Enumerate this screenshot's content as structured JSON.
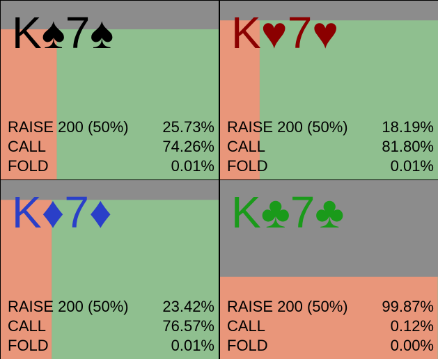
{
  "hands": [
    {
      "title": "K♠7♠",
      "color": "#000000",
      "weight": 0.84,
      "actions": [
        {
          "name": "RAISE 200 (50%)",
          "value": 25.73,
          "label": "25.73%"
        },
        {
          "name": "CALL",
          "value": 74.26,
          "label": "74.26%"
        },
        {
          "name": "FOLD",
          "value": 0.01,
          "label": "0.01%"
        }
      ]
    },
    {
      "title": "K♥7♥",
      "color": "#8b0000",
      "weight": 0.89,
      "actions": [
        {
          "name": "RAISE 200 (50%)",
          "value": 18.19,
          "label": "18.19%"
        },
        {
          "name": "CALL",
          "value": 81.8,
          "label": "81.80%"
        },
        {
          "name": "FOLD",
          "value": 0.01,
          "label": "0.01%"
        }
      ]
    },
    {
      "title": "K♦7♦",
      "color": "#2a3fc8",
      "weight": 0.89,
      "actions": [
        {
          "name": "RAISE 200 (50%)",
          "value": 23.42,
          "label": "23.42%"
        },
        {
          "name": "CALL",
          "value": 76.57,
          "label": "76.57%"
        },
        {
          "name": "FOLD",
          "value": 0.01,
          "label": "0.01%"
        }
      ]
    },
    {
      "title": "K♣7♣",
      "color": "#1a9a1a",
      "weight": 0.46,
      "actions": [
        {
          "name": "RAISE 200 (50%)",
          "value": 99.87,
          "label": "99.87%"
        },
        {
          "name": "CALL",
          "value": 0.12,
          "label": "0.12%"
        },
        {
          "name": "FOLD",
          "value": 0.0,
          "label": "0.00%"
        }
      ]
    }
  ]
}
